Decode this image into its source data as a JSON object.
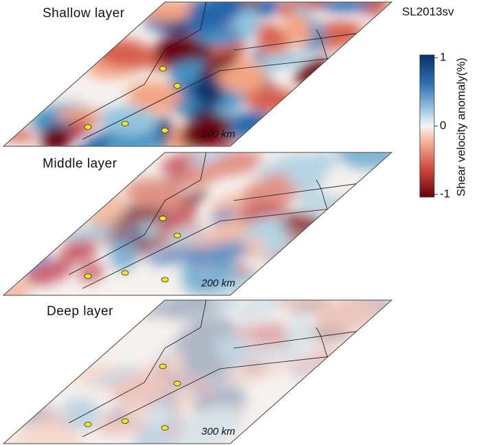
{
  "model": "SL2013sv",
  "layers": [
    {
      "label": "Shallow layer",
      "depth": "100 km"
    },
    {
      "label": "Middle layer",
      "depth": "200 km"
    },
    {
      "label": "Deep layer",
      "depth": "300 km"
    }
  ],
  "colorbar": {
    "label": "Shear velocity anomaly(%)",
    "lim": [
      -1,
      1
    ],
    "ticks": [
      1,
      0,
      -1
    ]
  }
}
